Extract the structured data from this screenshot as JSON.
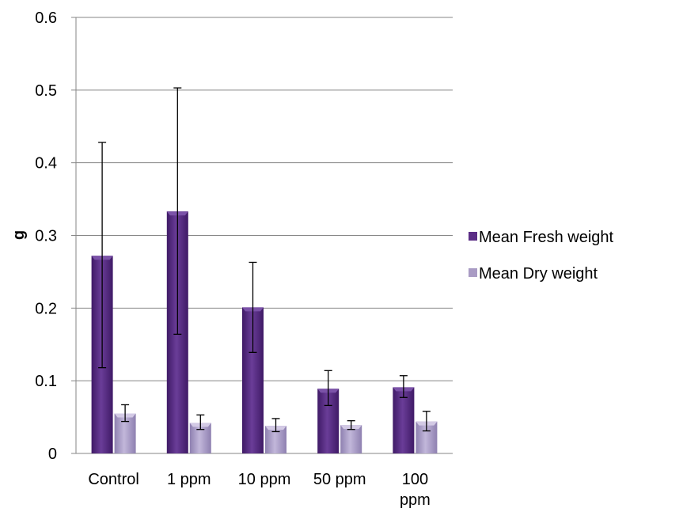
{
  "chart_data": {
    "type": "bar",
    "title": "",
    "xlabel": "",
    "ylabel": "g",
    "ylim": [
      0,
      0.6
    ],
    "yticks": [
      "0",
      "0.1",
      "0.2",
      "0.3",
      "0.4",
      "0.5",
      "0.6"
    ],
    "ytick_values": [
      0,
      0.1,
      0.2,
      0.3,
      0.4,
      0.5,
      0.6
    ],
    "grid": true,
    "legend": "right",
    "categories": [
      [
        "Control"
      ],
      [
        "1 ppm"
      ],
      [
        "10 ppm"
      ],
      [
        "50 ppm"
      ],
      [
        "100",
        "ppm"
      ]
    ],
    "series": [
      {
        "name": "Mean Fresh weight",
        "color": "#5b2d86",
        "values": [
          0.272,
          0.333,
          0.201,
          0.089,
          0.091
        ],
        "error_low": [
          0.118,
          0.164,
          0.139,
          0.066,
          0.077
        ],
        "error_high": [
          0.428,
          0.503,
          0.263,
          0.114,
          0.107
        ]
      },
      {
        "name": "Mean Dry weight",
        "color": "#a99bc4",
        "values": [
          0.055,
          0.042,
          0.038,
          0.039,
          0.044
        ],
        "error_low": [
          0.044,
          0.033,
          0.03,
          0.033,
          0.031
        ],
        "error_high": [
          0.067,
          0.053,
          0.048,
          0.045,
          0.058
        ]
      }
    ]
  }
}
